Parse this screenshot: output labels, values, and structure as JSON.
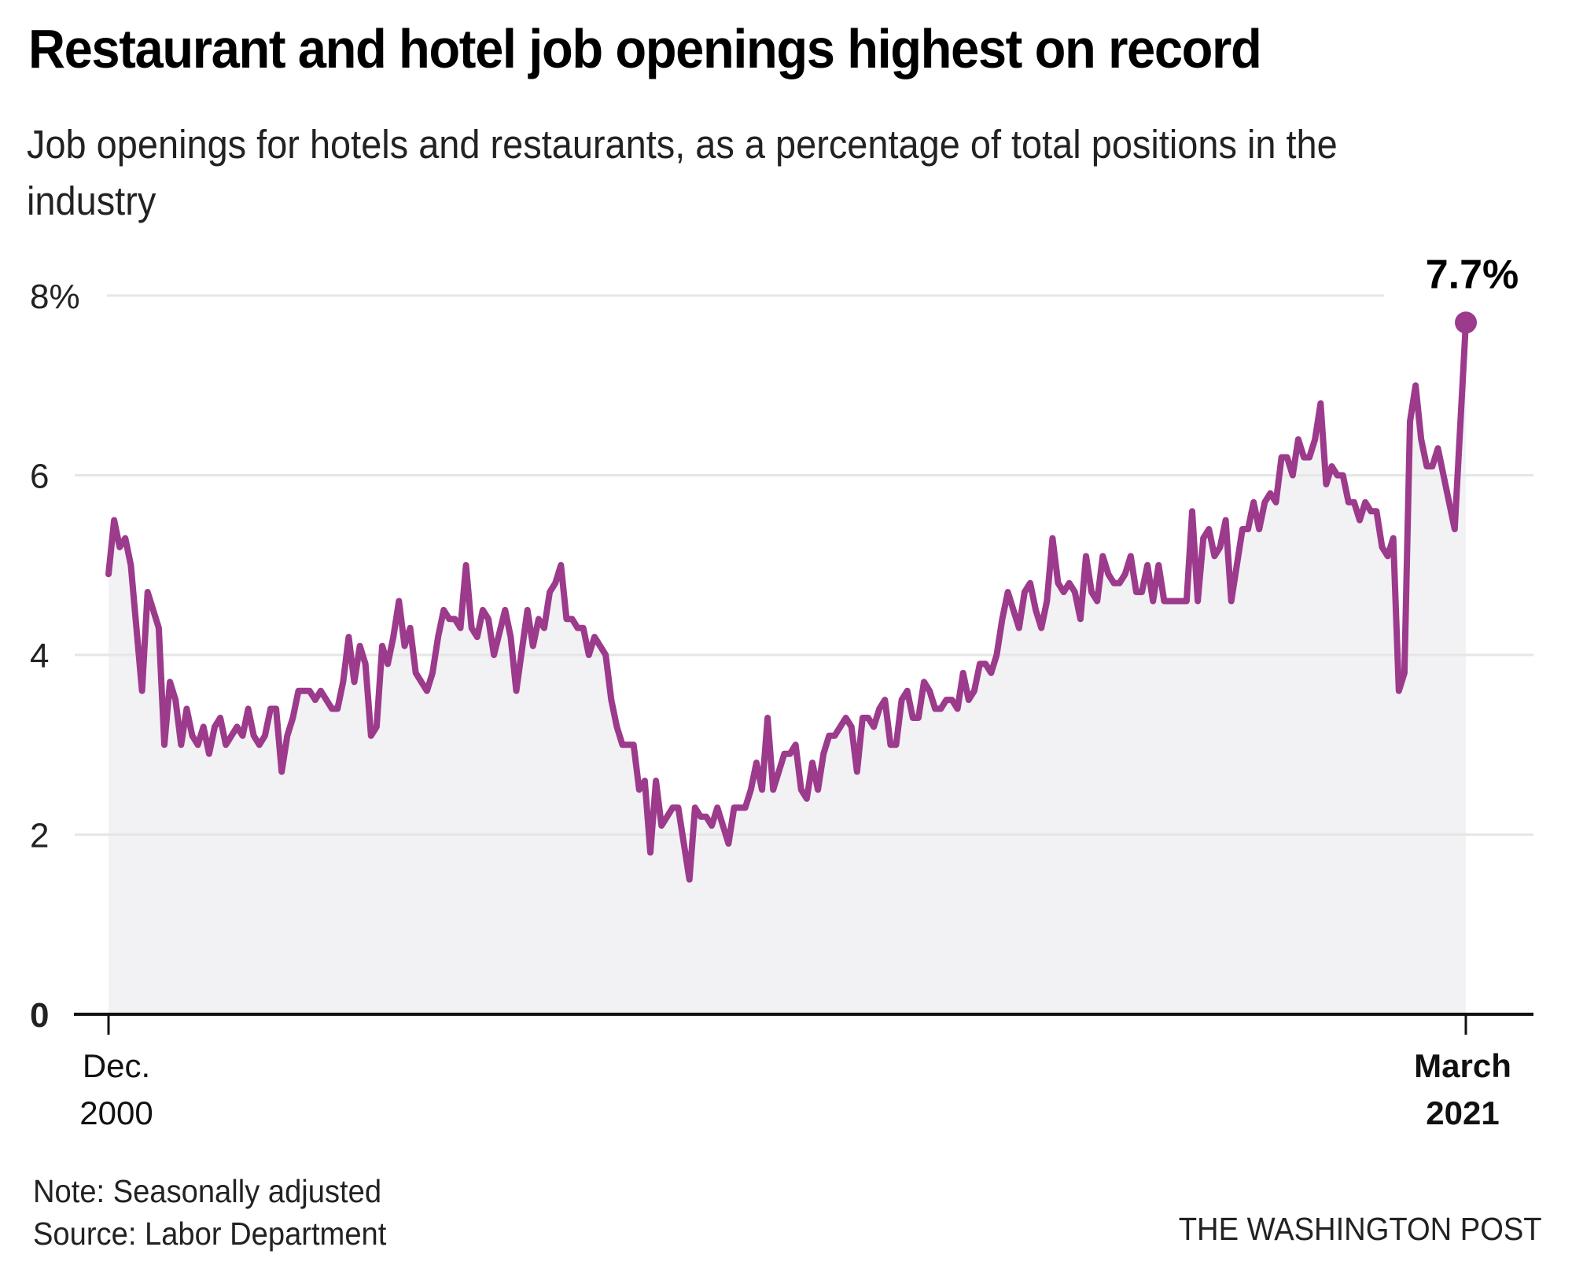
{
  "header": {
    "title": "Restaurant and hotel job openings highest on record",
    "subtitle": "Job openings for hotels and restaurants, as a percentage of total positions in the industry"
  },
  "footer": {
    "note": "Note: Seasonally adjusted",
    "source": "Source: Labor Department",
    "credit": "THE WASHINGTON POST"
  },
  "chart_data": {
    "type": "area",
    "title": "Restaurant and hotel job openings highest on record",
    "subtitle": "Job openings for hotels and restaurants, as a percentage of total positions in the industry",
    "xlabel": "",
    "ylabel": "",
    "ylim": [
      0,
      8
    ],
    "xlim": [
      "2000-12",
      "2021-03"
    ],
    "yticks": [
      {
        "value": 0,
        "label": "0"
      },
      {
        "value": 2,
        "label": "2"
      },
      {
        "value": 4,
        "label": "4"
      },
      {
        "value": 6,
        "label": "6"
      },
      {
        "value": 8,
        "label": "8%"
      }
    ],
    "xticks": [
      {
        "date": "2000-12",
        "line1": "Dec.",
        "line2": "2000",
        "bold": false
      },
      {
        "date": "2021-03",
        "line1": "March",
        "line2": "2021",
        "bold": true
      }
    ],
    "grid": true,
    "legend": "none",
    "series": [
      {
        "name": "Job openings rate, accommodation and food services (%)",
        "color": "#9c3a8c",
        "fill": "#f2f1f4",
        "points": [
          [
            "2000-12",
            4.9
          ],
          [
            "2001-01",
            5.5
          ],
          [
            "2001-02",
            5.2
          ],
          [
            "2001-03",
            5.3
          ],
          [
            "2001-04",
            5.0
          ],
          [
            "2001-06",
            3.6
          ],
          [
            "2001-07",
            4.7
          ],
          [
            "2001-09",
            4.3
          ],
          [
            "2001-10",
            3.0
          ],
          [
            "2001-11",
            3.7
          ],
          [
            "2001-12",
            3.5
          ],
          [
            "2002-01",
            3.0
          ],
          [
            "2002-02",
            3.4
          ],
          [
            "2002-03",
            3.1
          ],
          [
            "2002-04",
            3.0
          ],
          [
            "2002-05",
            3.2
          ],
          [
            "2002-06",
            2.9
          ],
          [
            "2002-07",
            3.2
          ],
          [
            "2002-08",
            3.3
          ],
          [
            "2002-09",
            3.0
          ],
          [
            "2002-11",
            3.2
          ],
          [
            "2002-12",
            3.1
          ],
          [
            "2003-01",
            3.4
          ],
          [
            "2003-02",
            3.1
          ],
          [
            "2003-03",
            3.0
          ],
          [
            "2003-04",
            3.1
          ],
          [
            "2003-05",
            3.4
          ],
          [
            "2003-06",
            3.4
          ],
          [
            "2003-07",
            2.7
          ],
          [
            "2003-08",
            3.1
          ],
          [
            "2003-09",
            3.3
          ],
          [
            "2003-10",
            3.6
          ],
          [
            "2003-12",
            3.6
          ],
          [
            "2004-01",
            3.5
          ],
          [
            "2004-02",
            3.6
          ],
          [
            "2004-04",
            3.4
          ],
          [
            "2004-05",
            3.4
          ],
          [
            "2004-06",
            3.7
          ],
          [
            "2004-07",
            4.2
          ],
          [
            "2004-08",
            3.7
          ],
          [
            "2004-09",
            4.1
          ],
          [
            "2004-10",
            3.9
          ],
          [
            "2004-11",
            3.1
          ],
          [
            "2004-12",
            3.2
          ],
          [
            "2005-01",
            4.1
          ],
          [
            "2005-02",
            3.9
          ],
          [
            "2005-03",
            4.2
          ],
          [
            "2005-04",
            4.6
          ],
          [
            "2005-05",
            4.1
          ],
          [
            "2005-06",
            4.3
          ],
          [
            "2005-07",
            3.8
          ],
          [
            "2005-09",
            3.6
          ],
          [
            "2005-10",
            3.8
          ],
          [
            "2005-11",
            4.2
          ],
          [
            "2005-12",
            4.5
          ],
          [
            "2006-01",
            4.4
          ],
          [
            "2006-02",
            4.4
          ],
          [
            "2006-03",
            4.3
          ],
          [
            "2006-04",
            5.0
          ],
          [
            "2006-05",
            4.3
          ],
          [
            "2006-06",
            4.2
          ],
          [
            "2006-07",
            4.5
          ],
          [
            "2006-08",
            4.4
          ],
          [
            "2006-09",
            4.0
          ],
          [
            "2006-11",
            4.5
          ],
          [
            "2006-12",
            4.2
          ],
          [
            "2007-01",
            3.6
          ],
          [
            "2007-03",
            4.5
          ],
          [
            "2007-04",
            4.1
          ],
          [
            "2007-05",
            4.4
          ],
          [
            "2007-06",
            4.3
          ],
          [
            "2007-07",
            4.7
          ],
          [
            "2007-08",
            4.8
          ],
          [
            "2007-09",
            5.0
          ],
          [
            "2007-10",
            4.4
          ],
          [
            "2007-11",
            4.4
          ],
          [
            "2007-12",
            4.3
          ],
          [
            "2008-01",
            4.3
          ],
          [
            "2008-02",
            4.0
          ],
          [
            "2008-03",
            4.2
          ],
          [
            "2008-05",
            4.0
          ],
          [
            "2008-06",
            3.5
          ],
          [
            "2008-07",
            3.2
          ],
          [
            "2008-08",
            3.0
          ],
          [
            "2008-10",
            3.0
          ],
          [
            "2008-11",
            2.5
          ],
          [
            "2008-12",
            2.6
          ],
          [
            "2009-01",
            1.8
          ],
          [
            "2009-02",
            2.6
          ],
          [
            "2009-03",
            2.1
          ],
          [
            "2009-04",
            2.2
          ],
          [
            "2009-05",
            2.3
          ],
          [
            "2009-06",
            2.3
          ],
          [
            "2009-07",
            1.9
          ],
          [
            "2009-08",
            1.5
          ],
          [
            "2009-09",
            2.3
          ],
          [
            "2009-10",
            2.2
          ],
          [
            "2009-11",
            2.2
          ],
          [
            "2009-12",
            2.1
          ],
          [
            "2010-01",
            2.3
          ],
          [
            "2010-03",
            1.9
          ],
          [
            "2010-04",
            2.3
          ],
          [
            "2010-06",
            2.3
          ],
          [
            "2010-07",
            2.5
          ],
          [
            "2010-08",
            2.8
          ],
          [
            "2010-09",
            2.5
          ],
          [
            "2010-10",
            3.3
          ],
          [
            "2010-11",
            2.5
          ],
          [
            "2010-12",
            2.7
          ],
          [
            "2011-01",
            2.9
          ],
          [
            "2011-02",
            2.9
          ],
          [
            "2011-03",
            3.0
          ],
          [
            "2011-04",
            2.5
          ],
          [
            "2011-05",
            2.4
          ],
          [
            "2011-06",
            2.8
          ],
          [
            "2011-07",
            2.5
          ],
          [
            "2011-08",
            2.9
          ],
          [
            "2011-09",
            3.1
          ],
          [
            "2011-10",
            3.1
          ],
          [
            "2011-11",
            3.2
          ],
          [
            "2011-12",
            3.3
          ],
          [
            "2012-01",
            3.2
          ],
          [
            "2012-02",
            2.7
          ],
          [
            "2012-03",
            3.3
          ],
          [
            "2012-04",
            3.3
          ],
          [
            "2012-05",
            3.2
          ],
          [
            "2012-06",
            3.4
          ],
          [
            "2012-07",
            3.5
          ],
          [
            "2012-08",
            3.0
          ],
          [
            "2012-09",
            3.0
          ],
          [
            "2012-10",
            3.5
          ],
          [
            "2012-11",
            3.6
          ],
          [
            "2012-12",
            3.3
          ],
          [
            "2013-01",
            3.3
          ],
          [
            "2013-02",
            3.7
          ],
          [
            "2013-03",
            3.6
          ],
          [
            "2013-04",
            3.4
          ],
          [
            "2013-05",
            3.4
          ],
          [
            "2013-06",
            3.5
          ],
          [
            "2013-07",
            3.5
          ],
          [
            "2013-08",
            3.4
          ],
          [
            "2013-09",
            3.8
          ],
          [
            "2013-10",
            3.5
          ],
          [
            "2013-11",
            3.6
          ],
          [
            "2013-12",
            3.9
          ],
          [
            "2014-01",
            3.9
          ],
          [
            "2014-02",
            3.8
          ],
          [
            "2014-03",
            4.0
          ],
          [
            "2014-04",
            4.4
          ],
          [
            "2014-05",
            4.7
          ],
          [
            "2014-06",
            4.5
          ],
          [
            "2014-07",
            4.3
          ],
          [
            "2014-08",
            4.7
          ],
          [
            "2014-09",
            4.8
          ],
          [
            "2014-10",
            4.5
          ],
          [
            "2014-11",
            4.3
          ],
          [
            "2014-12",
            4.6
          ],
          [
            "2015-01",
            5.3
          ],
          [
            "2015-02",
            4.8
          ],
          [
            "2015-03",
            4.7
          ],
          [
            "2015-04",
            4.8
          ],
          [
            "2015-05",
            4.7
          ],
          [
            "2015-06",
            4.4
          ],
          [
            "2015-07",
            5.1
          ],
          [
            "2015-08",
            4.7
          ],
          [
            "2015-09",
            4.6
          ],
          [
            "2015-10",
            5.1
          ],
          [
            "2015-11",
            4.9
          ],
          [
            "2015-12",
            4.8
          ],
          [
            "2016-01",
            4.8
          ],
          [
            "2016-02",
            4.9
          ],
          [
            "2016-03",
            5.1
          ],
          [
            "2016-04",
            4.7
          ],
          [
            "2016-05",
            4.7
          ],
          [
            "2016-06",
            5.0
          ],
          [
            "2016-07",
            4.6
          ],
          [
            "2016-08",
            5.0
          ],
          [
            "2016-09",
            4.6
          ],
          [
            "2017-01",
            4.6
          ],
          [
            "2017-02",
            5.6
          ],
          [
            "2017-03",
            4.6
          ],
          [
            "2017-04",
            5.3
          ],
          [
            "2017-05",
            5.4
          ],
          [
            "2017-06",
            5.1
          ],
          [
            "2017-07",
            5.2
          ],
          [
            "2017-08",
            5.5
          ],
          [
            "2017-09",
            4.6
          ],
          [
            "2017-10",
            5.0
          ],
          [
            "2017-11",
            5.4
          ],
          [
            "2017-12",
            5.4
          ],
          [
            "2018-01",
            5.7
          ],
          [
            "2018-02",
            5.4
          ],
          [
            "2018-03",
            5.7
          ],
          [
            "2018-04",
            5.8
          ],
          [
            "2018-05",
            5.7
          ],
          [
            "2018-06",
            6.2
          ],
          [
            "2018-07",
            6.2
          ],
          [
            "2018-08",
            6.0
          ],
          [
            "2018-09",
            6.4
          ],
          [
            "2018-10",
            6.2
          ],
          [
            "2018-11",
            6.2
          ],
          [
            "2018-12",
            6.4
          ],
          [
            "2019-01",
            6.8
          ],
          [
            "2019-02",
            5.9
          ],
          [
            "2019-03",
            6.1
          ],
          [
            "2019-04",
            6.0
          ],
          [
            "2019-05",
            6.0
          ],
          [
            "2019-06",
            5.7
          ],
          [
            "2019-07",
            5.7
          ],
          [
            "2019-08",
            5.5
          ],
          [
            "2019-09",
            5.7
          ],
          [
            "2019-10",
            5.6
          ],
          [
            "2019-11",
            5.6
          ],
          [
            "2019-12",
            5.2
          ],
          [
            "2020-01",
            5.1
          ],
          [
            "2020-02",
            5.3
          ],
          [
            "2020-03",
            3.6
          ],
          [
            "2020-04",
            3.8
          ],
          [
            "2020-05",
            6.6
          ],
          [
            "2020-06",
            7.0
          ],
          [
            "2020-07",
            6.4
          ],
          [
            "2020-08",
            6.1
          ],
          [
            "2020-09",
            6.1
          ],
          [
            "2020-10",
            6.3
          ],
          [
            "2020-11",
            6.0
          ],
          [
            "2021-01",
            5.4
          ],
          [
            "2021-03",
            7.7
          ]
        ]
      }
    ],
    "annotations": [
      {
        "date": "2021-03",
        "value": 7.7,
        "label": "7.7%"
      }
    ]
  }
}
